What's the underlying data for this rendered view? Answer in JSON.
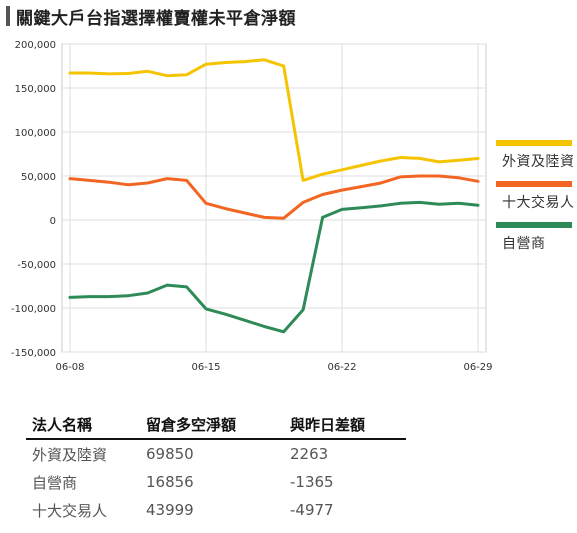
{
  "page_title": "關鍵大戶台指選擇權賣權未平倉淨額",
  "chart_data": {
    "type": "line",
    "x_ticks": [
      "06-08",
      "06-15",
      "06-22",
      "06-29"
    ],
    "y_ticks": [
      "200,000",
      "150,000",
      "100,000",
      "50,000",
      "0",
      "-50,000",
      "-100,000",
      "-150,000"
    ],
    "ylim": [
      -150000,
      200000
    ],
    "grid": true,
    "legend_position": "right",
    "series": [
      {
        "name": "外資及陸資",
        "color": "#f5c400",
        "points": [
          [
            "06-08",
            167000
          ],
          [
            "06-09",
            167000
          ],
          [
            "06-10",
            166000
          ],
          [
            "06-11",
            166500
          ],
          [
            "06-12",
            169000
          ],
          [
            "06-13",
            164000
          ],
          [
            "06-14",
            165000
          ],
          [
            "06-15",
            177000
          ],
          [
            "06-16",
            179000
          ],
          [
            "06-17",
            180000
          ],
          [
            "06-18",
            182000
          ],
          [
            "06-19",
            175000
          ],
          [
            "06-20",
            45000
          ],
          [
            "06-21",
            52000
          ],
          [
            "06-22",
            57000
          ],
          [
            "06-23",
            62000
          ],
          [
            "06-24",
            67000
          ],
          [
            "06-25",
            71000
          ],
          [
            "06-26",
            70000
          ],
          [
            "06-27",
            66000
          ],
          [
            "06-28",
            68000
          ],
          [
            "06-29",
            69850
          ]
        ]
      },
      {
        "name": "十大交易人",
        "color": "#f26522",
        "points": [
          [
            "06-08",
            47000
          ],
          [
            "06-09",
            45000
          ],
          [
            "06-10",
            43000
          ],
          [
            "06-11",
            40000
          ],
          [
            "06-12",
            42000
          ],
          [
            "06-13",
            47000
          ],
          [
            "06-14",
            45000
          ],
          [
            "06-15",
            19000
          ],
          [
            "06-16",
            13000
          ],
          [
            "06-17",
            8000
          ],
          [
            "06-18",
            3000
          ],
          [
            "06-19",
            2000
          ],
          [
            "06-20",
            20000
          ],
          [
            "06-21",
            29000
          ],
          [
            "06-22",
            34000
          ],
          [
            "06-23",
            38000
          ],
          [
            "06-24",
            42000
          ],
          [
            "06-25",
            49000
          ],
          [
            "06-26",
            50000
          ],
          [
            "06-27",
            50000
          ],
          [
            "06-28",
            48000
          ],
          [
            "06-29",
            43999
          ]
        ]
      },
      {
        "name": "自營商",
        "color": "#2e8b57",
        "points": [
          [
            "06-08",
            -88000
          ],
          [
            "06-09",
            -87000
          ],
          [
            "06-10",
            -87000
          ],
          [
            "06-11",
            -86000
          ],
          [
            "06-12",
            -83000
          ],
          [
            "06-13",
            -74000
          ],
          [
            "06-14",
            -76000
          ],
          [
            "06-15",
            -101000
          ],
          [
            "06-16",
            -107000
          ],
          [
            "06-17",
            -114000
          ],
          [
            "06-18",
            -121000
          ],
          [
            "06-19",
            -127000
          ],
          [
            "06-20",
            -102000
          ],
          [
            "06-21",
            3000
          ],
          [
            "06-22",
            12000
          ],
          [
            "06-23",
            14000
          ],
          [
            "06-24",
            16000
          ],
          [
            "06-25",
            19000
          ],
          [
            "06-26",
            20000
          ],
          [
            "06-27",
            18000
          ],
          [
            "06-28",
            19000
          ],
          [
            "06-29",
            16856
          ]
        ]
      }
    ]
  },
  "table": {
    "headers": [
      "法人名稱",
      "留倉多空淨額",
      "與昨日差額"
    ],
    "rows": [
      [
        "外資及陸資",
        "69850",
        "2263"
      ],
      [
        "自營商",
        "16856",
        "-1365"
      ],
      [
        "十大交易人",
        "43999",
        "-4977"
      ]
    ]
  }
}
